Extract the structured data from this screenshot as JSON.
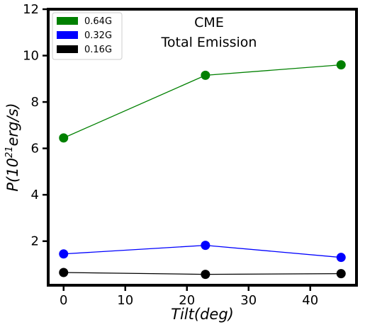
{
  "chart_data": {
    "type": "line",
    "title_lines": [
      "CME",
      "Total Emission"
    ],
    "xlabel": "Tilt(deg)",
    "ylabel": "P(10^21 erg/s)",
    "ylabel_parts": {
      "base": "P(10",
      "exponent": "21",
      "rest": "erg/s)"
    },
    "xlim": [
      -2.5,
      47.5
    ],
    "ylim": [
      0.1,
      12
    ],
    "xticks": [
      0,
      10,
      20,
      30,
      40
    ],
    "yticks": [
      2,
      4,
      6,
      8,
      10,
      12
    ],
    "x": [
      0,
      23,
      45
    ],
    "series": [
      {
        "name": "0.64G",
        "color": "#008000",
        "values": [
          6.45,
          9.15,
          9.6
        ]
      },
      {
        "name": "0.32G",
        "color": "#0000ff",
        "values": [
          1.45,
          1.82,
          1.3
        ]
      },
      {
        "name": "0.16G",
        "color": "#000000",
        "values": [
          0.65,
          0.57,
          0.6
        ]
      }
    ],
    "legend_position": "top-left",
    "grid": false,
    "marker": "circle"
  }
}
